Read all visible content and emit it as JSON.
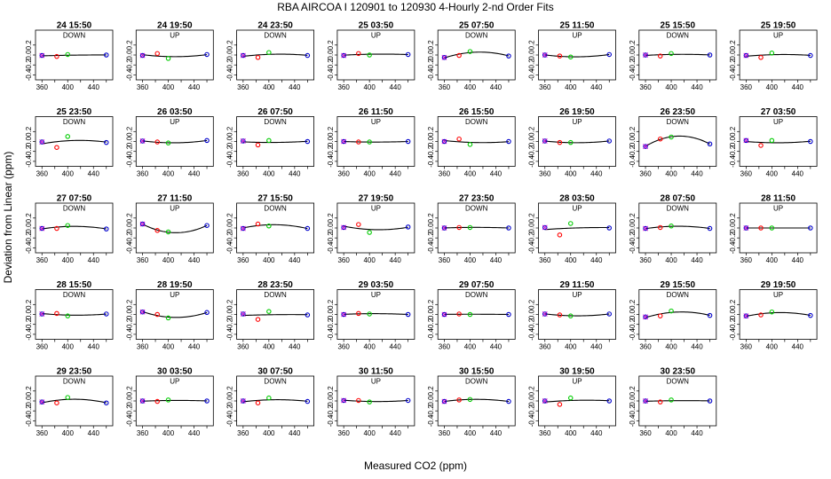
{
  "title": "RBA   AIRCOA I   120901 to 120930   4-Hourly 2-nd Order Fits",
  "xlabel": "Measured CO2 (ppm)",
  "ylabel": "Deviation from Linear (ppm)",
  "colors": {
    "low_standard": "#0000cc",
    "mid_low_standard": "#ff0000",
    "mid_high_standard": "#00cc00",
    "high_standard": "#0000cc",
    "cross_marker": "#cc00cc",
    "fit_curve": "#000000"
  },
  "chart_data": {
    "type": "scatter",
    "title": "RBA   AIRCOA I   120901 to 120930   4-Hourly 2-nd Order Fits",
    "xlabel": "Measured CO2 (ppm)",
    "ylabel": "Deviation from Linear (ppm)",
    "xlim": [
      350,
      470
    ],
    "ylim": [
      -0.5,
      0.5
    ],
    "x_ticks": [
      360,
      400,
      440
    ],
    "x_tick_labels": [
      "360",
      "400",
      "440"
    ],
    "x_minor_ticks": [
      380,
      420,
      460
    ],
    "y_ticks": [
      -0.4,
      -0.2,
      0.0,
      0.2
    ],
    "y_tick_labels": [
      "-0.4",
      "-0.2",
      "0.0",
      "0.2"
    ],
    "standard_x": [
      360,
      383,
      400,
      460
    ],
    "panels": [
      {
        "time": "24 15:50",
        "direction": "DOWN",
        "deviations": [
          -0.01,
          -0.03,
          0.01,
          0.0
        ]
      },
      {
        "time": "24 19:50",
        "direction": "UP",
        "deviations": [
          -0.01,
          0.03,
          -0.07,
          0.01
        ]
      },
      {
        "time": "24 23:50",
        "direction": "DOWN",
        "deviations": [
          -0.01,
          -0.05,
          0.05,
          -0.01
        ]
      },
      {
        "time": "25 03:50",
        "direction": "UP",
        "deviations": [
          -0.01,
          0.03,
          0.0,
          0.01
        ]
      },
      {
        "time": "25 07:50",
        "direction": "DOWN",
        "deviations": [
          -0.05,
          -0.01,
          0.07,
          -0.02
        ]
      },
      {
        "time": "25 11:50",
        "direction": "UP",
        "deviations": [
          0.0,
          -0.02,
          -0.04,
          0.01
        ]
      },
      {
        "time": "25 15:50",
        "direction": "DOWN",
        "deviations": [
          0.0,
          -0.02,
          0.03,
          0.0
        ]
      },
      {
        "time": "25 19:50",
        "direction": "UP",
        "deviations": [
          -0.01,
          -0.05,
          0.04,
          -0.01
        ]
      },
      {
        "time": "25 23:50",
        "direction": "DOWN",
        "deviations": [
          -0.01,
          -0.12,
          0.1,
          -0.02
        ]
      },
      {
        "time": "26 03:50",
        "direction": "UP",
        "deviations": [
          0.01,
          -0.01,
          -0.03,
          0.02
        ]
      },
      {
        "time": "26 07:50",
        "direction": "DOWN",
        "deviations": [
          0.01,
          -0.07,
          0.02,
          0.0
        ]
      },
      {
        "time": "26 11:50",
        "direction": "UP",
        "deviations": [
          0.0,
          -0.01,
          -0.01,
          0.0
        ]
      },
      {
        "time": "26 15:50",
        "direction": "DOWN",
        "deviations": [
          0.0,
          0.05,
          -0.06,
          0.0
        ]
      },
      {
        "time": "26 19:50",
        "direction": "UP",
        "deviations": [
          0.01,
          -0.02,
          -0.02,
          0.01
        ]
      },
      {
        "time": "26 23:50",
        "direction": "DOWN",
        "deviations": [
          -0.1,
          0.05,
          0.09,
          -0.05
        ]
      },
      {
        "time": "27 03:50",
        "direction": "UP",
        "deviations": [
          0.02,
          -0.08,
          0.02,
          0.0
        ]
      },
      {
        "time": "27 07:50",
        "direction": "DOWN",
        "deviations": [
          -0.01,
          -0.01,
          0.05,
          -0.02
        ]
      },
      {
        "time": "27 11:50",
        "direction": "UP",
        "deviations": [
          0.08,
          -0.05,
          -0.08,
          0.05
        ]
      },
      {
        "time": "27 15:50",
        "direction": "DOWN",
        "deviations": [
          -0.01,
          0.08,
          0.04,
          -0.01
        ]
      },
      {
        "time": "27 19:50",
        "direction": "UP",
        "deviations": [
          0.01,
          0.07,
          -0.09,
          0.02
        ]
      },
      {
        "time": "27 23:50",
        "direction": "DOWN",
        "deviations": [
          0.0,
          0.01,
          0.01,
          0.0
        ]
      },
      {
        "time": "28 03:50",
        "direction": "UP",
        "deviations": [
          0.01,
          -0.14,
          0.09,
          0.0
        ]
      },
      {
        "time": "28 07:50",
        "direction": "DOWN",
        "deviations": [
          -0.01,
          0.01,
          0.04,
          -0.01
        ]
      },
      {
        "time": "28 11:50",
        "direction": "UP",
        "deviations": [
          0.0,
          0.0,
          0.0,
          0.0
        ]
      },
      {
        "time": "28 15:50",
        "direction": "DOWN",
        "deviations": [
          0.01,
          0.02,
          -0.03,
          0.01
        ]
      },
      {
        "time": "28 19:50",
        "direction": "UP",
        "deviations": [
          0.05,
          0.0,
          -0.07,
          0.04
        ]
      },
      {
        "time": "28 23:50",
        "direction": "DOWN",
        "deviations": [
          0.01,
          -0.1,
          0.06,
          -0.01
        ]
      },
      {
        "time": "29 03:50",
        "direction": "UP",
        "deviations": [
          0.0,
          0.02,
          0.01,
          0.0
        ]
      },
      {
        "time": "29 07:50",
        "direction": "DOWN",
        "deviations": [
          0.0,
          0.01,
          0.0,
          0.0
        ]
      },
      {
        "time": "29 11:50",
        "direction": "UP",
        "deviations": [
          0.01,
          -0.01,
          -0.03,
          0.01
        ]
      },
      {
        "time": "29 15:50",
        "direction": "DOWN",
        "deviations": [
          -0.05,
          -0.03,
          0.07,
          -0.02
        ]
      },
      {
        "time": "29 19:50",
        "direction": "UP",
        "deviations": [
          -0.03,
          -0.01,
          0.05,
          -0.02
        ]
      },
      {
        "time": "29 23:50",
        "direction": "DOWN",
        "deviations": [
          -0.02,
          -0.04,
          0.07,
          -0.04
        ]
      },
      {
        "time": "30 03:50",
        "direction": "UP",
        "deviations": [
          0.0,
          -0.01,
          0.02,
          0.0
        ]
      },
      {
        "time": "30 07:50",
        "direction": "DOWN",
        "deviations": [
          0.0,
          -0.04,
          0.06,
          -0.01
        ]
      },
      {
        "time": "30 11:50",
        "direction": "UP",
        "deviations": [
          0.01,
          0.01,
          -0.02,
          0.01
        ]
      },
      {
        "time": "30 15:50",
        "direction": "DOWN",
        "deviations": [
          -0.01,
          0.02,
          0.03,
          -0.01
        ]
      },
      {
        "time": "30 19:50",
        "direction": "UP",
        "deviations": [
          0.0,
          -0.07,
          0.06,
          0.0
        ]
      },
      {
        "time": "30 23:50",
        "direction": "DOWN",
        "deviations": [
          0.0,
          -0.02,
          0.02,
          0.0
        ]
      }
    ]
  }
}
